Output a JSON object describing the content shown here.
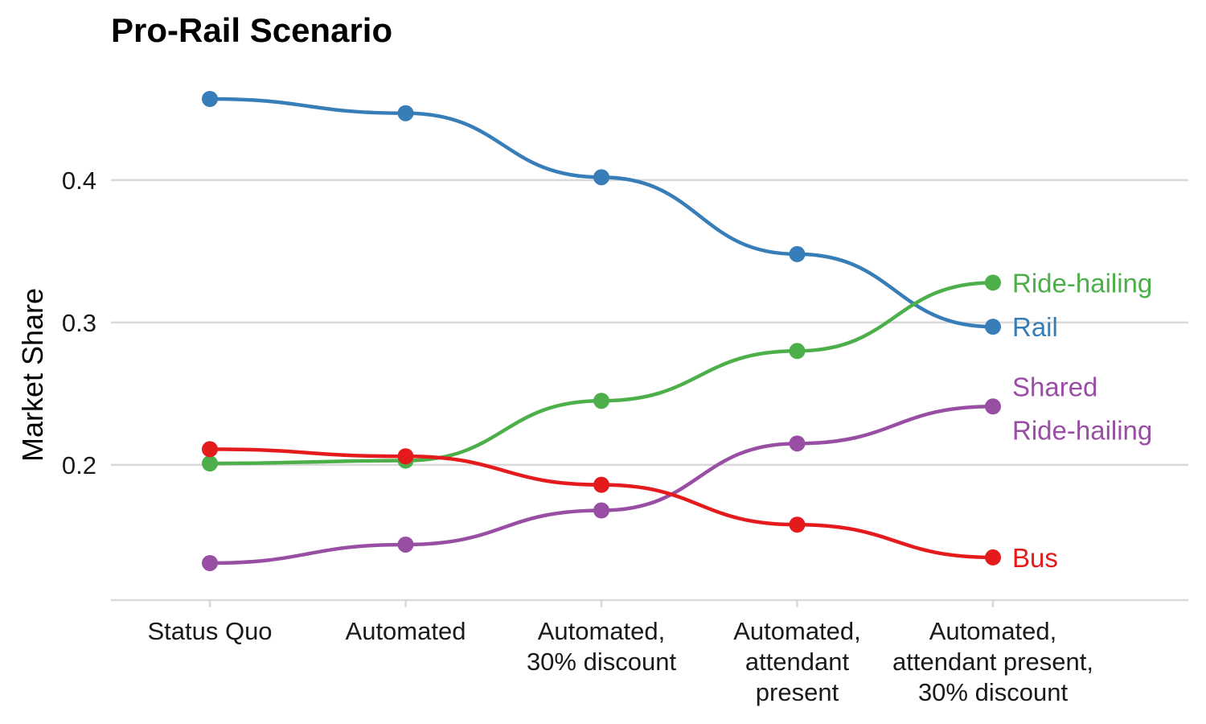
{
  "chart_data": {
    "type": "line",
    "title": "Pro-Rail Scenario",
    "xlabel": "",
    "ylabel": "Market Share",
    "categories": [
      [
        "Status Quo"
      ],
      [
        "Automated"
      ],
      [
        "Automated,",
        "30% discount"
      ],
      [
        "Automated,",
        "attendant",
        "present"
      ],
      [
        "Automated,",
        "attendant present,",
        "30% discount"
      ]
    ],
    "yticks": [
      0.2,
      0.3,
      0.4
    ],
    "ytick_labels": [
      "0.2",
      "0.3",
      "0.4"
    ],
    "ylim": [
      0.105,
      0.47
    ],
    "grid": true,
    "legend": "direct labels at line ends",
    "series": [
      {
        "name": "Rail",
        "label_lines": [
          "Rail"
        ],
        "color": "#377EB8",
        "values": [
          0.457,
          0.447,
          0.402,
          0.348,
          0.297
        ]
      },
      {
        "name": "Ride-hailing",
        "label_lines": [
          "Ride-hailing"
        ],
        "color": "#4DAF4A",
        "values": [
          0.201,
          0.203,
          0.245,
          0.28,
          0.328
        ]
      },
      {
        "name": "Shared Ride-hailing",
        "label_lines": [
          "Shared",
          "Ride-hailing"
        ],
        "color": "#984EA3",
        "values": [
          0.131,
          0.144,
          0.168,
          0.215,
          0.241
        ]
      },
      {
        "name": "Bus",
        "label_lines": [
          "Bus"
        ],
        "color": "#E41A1C",
        "values": [
          0.211,
          0.206,
          0.186,
          0.158,
          0.135
        ]
      }
    ]
  }
}
